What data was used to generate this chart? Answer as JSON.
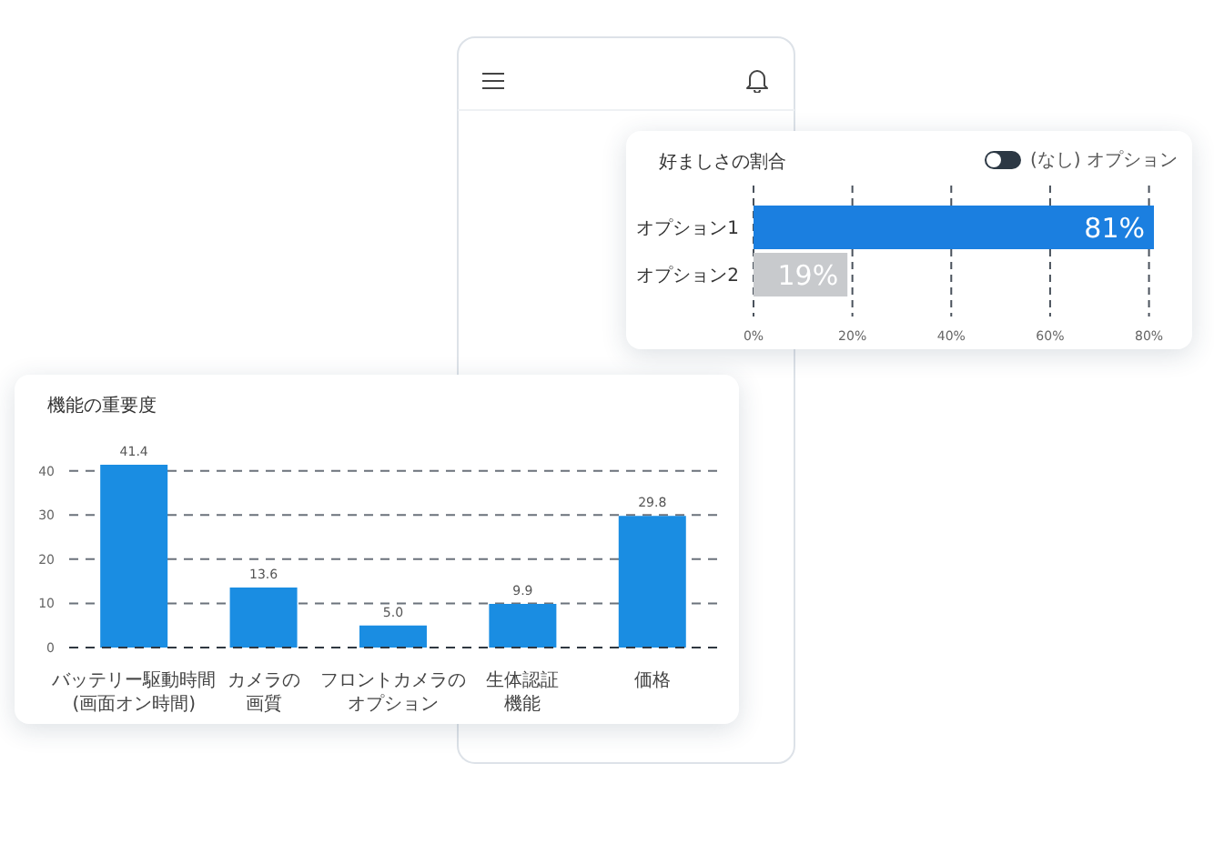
{
  "chart_data": [
    {
      "type": "bar",
      "orientation": "horizontal",
      "title": "好ましさの割合",
      "annotations": [
        "(なし) オプション"
      ],
      "categories": [
        "オプション1",
        "オプション2"
      ],
      "values": [
        81,
        19
      ],
      "colors": [
        "#1b7fe0",
        "#c8cacd"
      ],
      "value_labels": [
        "81%",
        "19%"
      ],
      "xlim": [
        0,
        81
      ],
      "xticks": [
        {
          "value": 0,
          "label": "0%"
        },
        {
          "value": 20,
          "label": "20%"
        },
        {
          "value": 40,
          "label": "40%"
        },
        {
          "value": 60,
          "label": "60%"
        },
        {
          "value": 80,
          "label": "80%"
        }
      ],
      "grid": "x"
    },
    {
      "type": "bar",
      "title": "機能の重要度",
      "categories": [
        "バッテリー駆動時間(画面オン時間)",
        "カメラの画質",
        "フロントカメラのオプション",
        "生体認証機能",
        "価格"
      ],
      "values": [
        41.4,
        13.6,
        5.0,
        9.9,
        29.8
      ],
      "color": "#1a8de2",
      "value_labels": [
        "41.4",
        "13.6",
        "5.0",
        "9.9",
        "29.8"
      ],
      "ylim": [
        0,
        42
      ],
      "yticks": [
        0,
        10,
        20,
        30,
        40
      ],
      "grid": "y"
    }
  ]
}
